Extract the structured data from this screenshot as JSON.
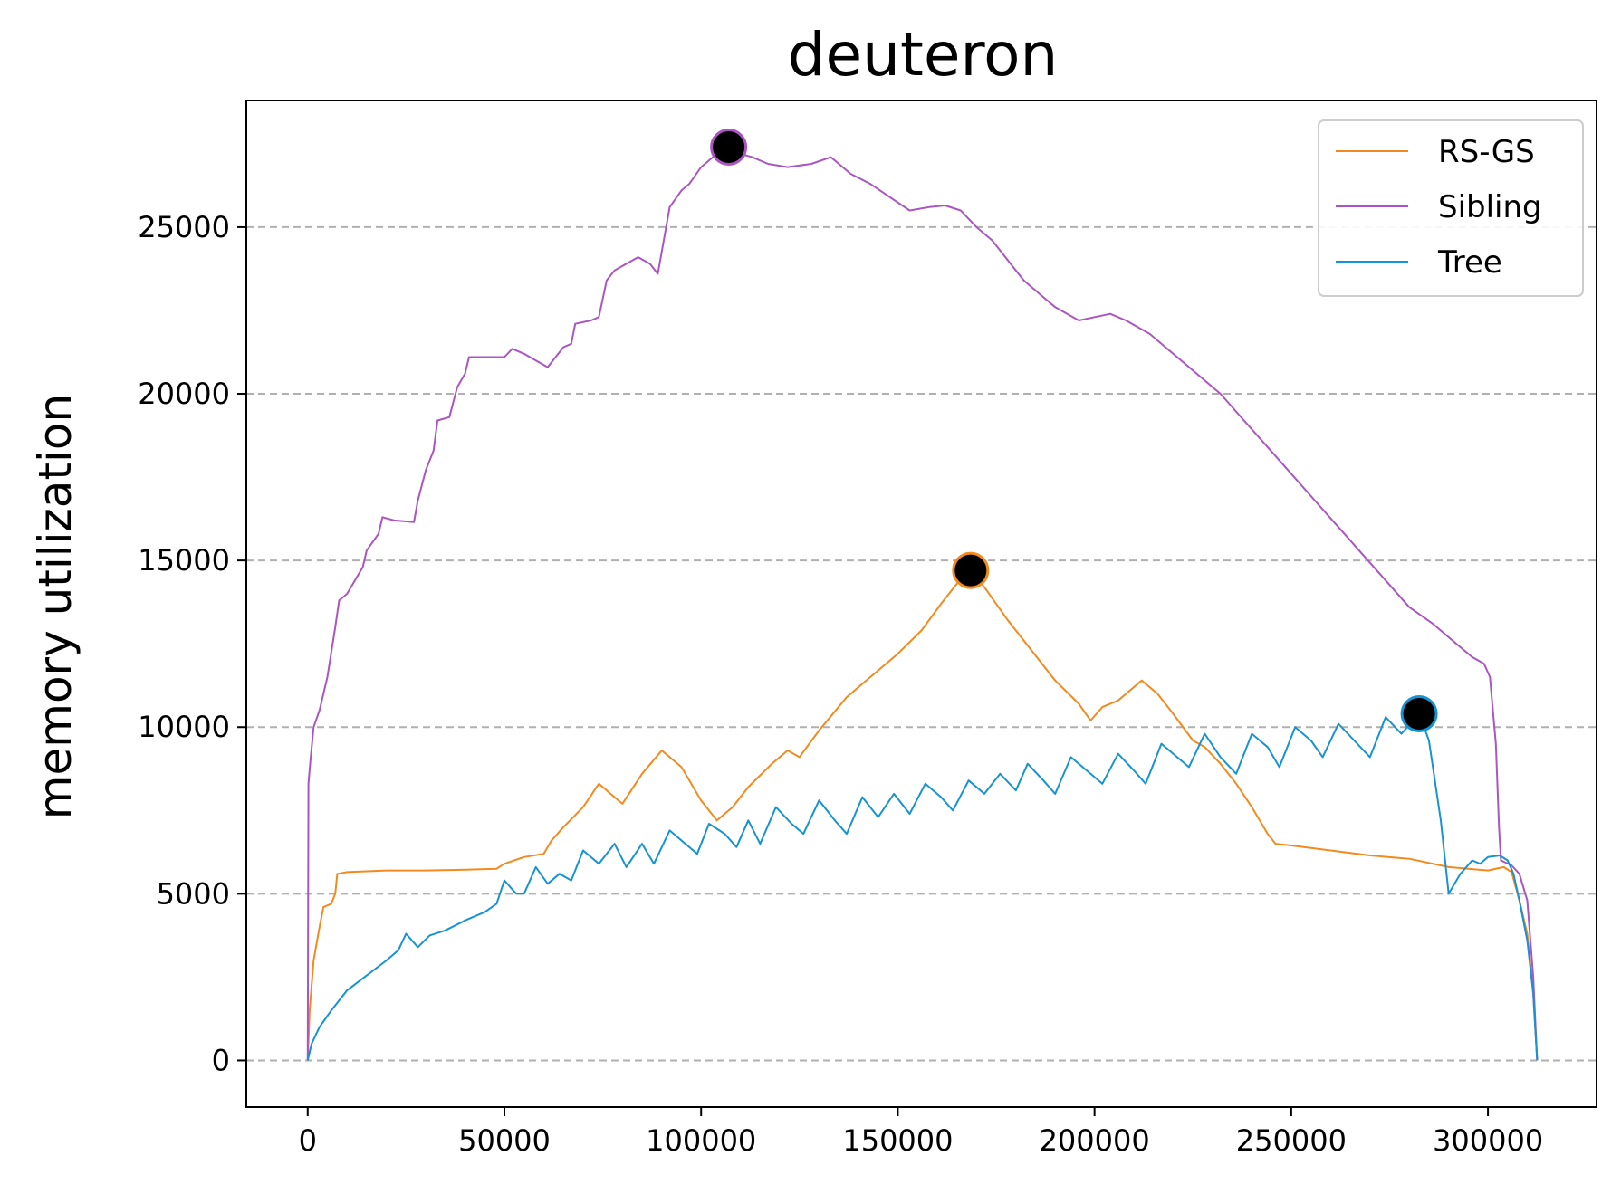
{
  "chart_data": {
    "type": "line",
    "title": "deuteron",
    "xlabel": "",
    "ylabel": "memory utilization",
    "xlim": [
      -15600,
      327600
    ],
    "ylim": [
      -1400,
      28800
    ],
    "xticks": [
      0,
      50000,
      100000,
      150000,
      200000,
      250000,
      300000
    ],
    "xtick_labels": [
      "0",
      "50000",
      "100000",
      "150000",
      "200000",
      "250000",
      "300000"
    ],
    "yticks": [
      0,
      5000,
      10000,
      15000,
      20000,
      25000
    ],
    "ytick_labels": [
      "0",
      "5000",
      "10000",
      "15000",
      "20000",
      "25000"
    ],
    "grid": "y-dashed",
    "legend_position": "top-right",
    "series": [
      {
        "name": "RS-GS",
        "color": "#f28a1e",
        "peak": [
          168500,
          14700
        ],
        "points": [
          [
            0,
            0
          ],
          [
            500,
            1500
          ],
          [
            1500,
            3000
          ],
          [
            3000,
            4000
          ],
          [
            4000,
            4600
          ],
          [
            6000,
            4700
          ],
          [
            7000,
            5000
          ],
          [
            7500,
            5600
          ],
          [
            10000,
            5650
          ],
          [
            20000,
            5700
          ],
          [
            30000,
            5700
          ],
          [
            40000,
            5720
          ],
          [
            48000,
            5750
          ],
          [
            50000,
            5900
          ],
          [
            55000,
            6100
          ],
          [
            60000,
            6200
          ],
          [
            62000,
            6600
          ],
          [
            65000,
            7000
          ],
          [
            70000,
            7600
          ],
          [
            74000,
            8300
          ],
          [
            78000,
            7900
          ],
          [
            80000,
            7700
          ],
          [
            85000,
            8600
          ],
          [
            90000,
            9300
          ],
          [
            95000,
            8800
          ],
          [
            100000,
            7800
          ],
          [
            104000,
            7200
          ],
          [
            108000,
            7600
          ],
          [
            112000,
            8200
          ],
          [
            118000,
            8900
          ],
          [
            122000,
            9300
          ],
          [
            125000,
            9100
          ],
          [
            130000,
            9900
          ],
          [
            137000,
            10900
          ],
          [
            143000,
            11500
          ],
          [
            150000,
            12200
          ],
          [
            156000,
            12900
          ],
          [
            161000,
            13700
          ],
          [
            165000,
            14300
          ],
          [
            168500,
            14700
          ],
          [
            172000,
            14200
          ],
          [
            178000,
            13200
          ],
          [
            184000,
            12300
          ],
          [
            190000,
            11400
          ],
          [
            196000,
            10700
          ],
          [
            199000,
            10200
          ],
          [
            202000,
            10600
          ],
          [
            206000,
            10800
          ],
          [
            212000,
            11400
          ],
          [
            216000,
            11000
          ],
          [
            220000,
            10400
          ],
          [
            225000,
            9600
          ],
          [
            228000,
            9400
          ],
          [
            232000,
            8900
          ],
          [
            236000,
            8300
          ],
          [
            240000,
            7600
          ],
          [
            244000,
            6800
          ],
          [
            246000,
            6500
          ],
          [
            250000,
            6450
          ],
          [
            260000,
            6300
          ],
          [
            270000,
            6150
          ],
          [
            280000,
            6050
          ],
          [
            290000,
            5800
          ],
          [
            300000,
            5700
          ],
          [
            304000,
            5800
          ],
          [
            306000,
            5650
          ],
          [
            308000,
            4800
          ],
          [
            310000,
            3800
          ],
          [
            311500,
            2000
          ],
          [
            312500,
            0
          ]
        ]
      },
      {
        "name": "Sibling",
        "color": "#ab55c2",
        "peak": [
          107000,
          27400
        ],
        "points": [
          [
            0,
            0
          ],
          [
            200,
            8300
          ],
          [
            700,
            9000
          ],
          [
            1500,
            10000
          ],
          [
            3000,
            10500
          ],
          [
            5000,
            11500
          ],
          [
            7000,
            13000
          ],
          [
            8000,
            13800
          ],
          [
            10000,
            14000
          ],
          [
            14000,
            14800
          ],
          [
            15000,
            15300
          ],
          [
            18000,
            15800
          ],
          [
            19000,
            16300
          ],
          [
            22000,
            16200
          ],
          [
            27000,
            16150
          ],
          [
            28000,
            16800
          ],
          [
            30000,
            17700
          ],
          [
            32000,
            18300
          ],
          [
            33000,
            19200
          ],
          [
            36000,
            19300
          ],
          [
            38000,
            20200
          ],
          [
            40000,
            20600
          ],
          [
            41000,
            21100
          ],
          [
            45000,
            21100
          ],
          [
            50000,
            21100
          ],
          [
            52000,
            21350
          ],
          [
            55000,
            21200
          ],
          [
            58000,
            21000
          ],
          [
            61000,
            20800
          ],
          [
            63000,
            21100
          ],
          [
            65000,
            21400
          ],
          [
            67000,
            21500
          ],
          [
            68000,
            22100
          ],
          [
            72000,
            22200
          ],
          [
            74000,
            22300
          ],
          [
            76000,
            23400
          ],
          [
            78000,
            23700
          ],
          [
            81000,
            23900
          ],
          [
            84000,
            24100
          ],
          [
            87000,
            23900
          ],
          [
            89000,
            23600
          ],
          [
            92000,
            25600
          ],
          [
            95000,
            26100
          ],
          [
            97000,
            26300
          ],
          [
            100000,
            26800
          ],
          [
            104000,
            27200
          ],
          [
            107000,
            27400
          ],
          [
            110000,
            27200
          ],
          [
            113000,
            27100
          ],
          [
            117000,
            26900
          ],
          [
            122000,
            26800
          ],
          [
            128000,
            26900
          ],
          [
            133000,
            27100
          ],
          [
            138000,
            26600
          ],
          [
            143000,
            26300
          ],
          [
            148000,
            25900
          ],
          [
            153000,
            25500
          ],
          [
            158000,
            25600
          ],
          [
            162000,
            25650
          ],
          [
            166000,
            25500
          ],
          [
            170000,
            25000
          ],
          [
            174000,
            24600
          ],
          [
            178000,
            24000
          ],
          [
            182000,
            23400
          ],
          [
            186000,
            23000
          ],
          [
            190000,
            22600
          ],
          [
            196000,
            22200
          ],
          [
            200000,
            22300
          ],
          [
            204000,
            22400
          ],
          [
            208000,
            22200
          ],
          [
            214000,
            21800
          ],
          [
            220000,
            21200
          ],
          [
            226000,
            20600
          ],
          [
            232000,
            20000
          ],
          [
            238000,
            19200
          ],
          [
            244000,
            18400
          ],
          [
            250000,
            17600
          ],
          [
            256000,
            16800
          ],
          [
            262000,
            16000
          ],
          [
            268000,
            15200
          ],
          [
            274000,
            14400
          ],
          [
            280000,
            13600
          ],
          [
            286000,
            13100
          ],
          [
            292000,
            12500
          ],
          [
            296000,
            12100
          ],
          [
            299000,
            11900
          ],
          [
            300500,
            11500
          ],
          [
            302000,
            9500
          ],
          [
            302800,
            7000
          ],
          [
            303300,
            6000
          ],
          [
            306000,
            5850
          ],
          [
            308000,
            5600
          ],
          [
            310000,
            4800
          ],
          [
            311500,
            2500
          ],
          [
            312500,
            0
          ]
        ]
      },
      {
        "name": "Tree",
        "color": "#1793d1",
        "peak": [
          282500,
          10400
        ],
        "points": [
          [
            0,
            0
          ],
          [
            1000,
            500
          ],
          [
            3000,
            1000
          ],
          [
            6000,
            1500
          ],
          [
            10000,
            2100
          ],
          [
            15000,
            2550
          ],
          [
            20000,
            3000
          ],
          [
            23000,
            3300
          ],
          [
            25000,
            3800
          ],
          [
            28000,
            3400
          ],
          [
            31000,
            3750
          ],
          [
            35000,
            3900
          ],
          [
            40000,
            4200
          ],
          [
            45000,
            4450
          ],
          [
            48000,
            4700
          ],
          [
            50000,
            5400
          ],
          [
            53000,
            5000
          ],
          [
            55000,
            5000
          ],
          [
            58000,
            5800
          ],
          [
            61000,
            5300
          ],
          [
            64000,
            5600
          ],
          [
            67000,
            5400
          ],
          [
            70000,
            6300
          ],
          [
            74000,
            5900
          ],
          [
            78000,
            6500
          ],
          [
            81000,
            5800
          ],
          [
            85000,
            6500
          ],
          [
            88000,
            5900
          ],
          [
            92000,
            6900
          ],
          [
            96000,
            6500
          ],
          [
            99000,
            6200
          ],
          [
            102000,
            7100
          ],
          [
            106000,
            6800
          ],
          [
            109000,
            6400
          ],
          [
            112000,
            7200
          ],
          [
            115000,
            6500
          ],
          [
            119000,
            7600
          ],
          [
            123000,
            7100
          ],
          [
            126000,
            6800
          ],
          [
            130000,
            7800
          ],
          [
            134000,
            7200
          ],
          [
            137000,
            6800
          ],
          [
            141000,
            7900
          ],
          [
            145000,
            7300
          ],
          [
            149000,
            8000
          ],
          [
            153000,
            7400
          ],
          [
            157000,
            8300
          ],
          [
            161000,
            7900
          ],
          [
            164000,
            7500
          ],
          [
            168000,
            8400
          ],
          [
            172000,
            8000
          ],
          [
            176000,
            8600
          ],
          [
            180000,
            8100
          ],
          [
            183000,
            8900
          ],
          [
            187000,
            8400
          ],
          [
            190000,
            8000
          ],
          [
            194000,
            9100
          ],
          [
            198000,
            8700
          ],
          [
            202000,
            8300
          ],
          [
            206000,
            9200
          ],
          [
            210000,
            8700
          ],
          [
            213000,
            8300
          ],
          [
            217000,
            9500
          ],
          [
            221000,
            9100
          ],
          [
            224000,
            8800
          ],
          [
            228000,
            9800
          ],
          [
            232000,
            9100
          ],
          [
            236000,
            8600
          ],
          [
            240000,
            9800
          ],
          [
            244000,
            9400
          ],
          [
            247000,
            8800
          ],
          [
            251000,
            10000
          ],
          [
            255000,
            9600
          ],
          [
            258000,
            9100
          ],
          [
            262000,
            10100
          ],
          [
            266000,
            9600
          ],
          [
            270000,
            9100
          ],
          [
            274000,
            10300
          ],
          [
            278000,
            9800
          ],
          [
            282500,
            10400
          ],
          [
            285000,
            9600
          ],
          [
            288000,
            7200
          ],
          [
            290000,
            5000
          ],
          [
            293000,
            5600
          ],
          [
            296000,
            6000
          ],
          [
            298000,
            5900
          ],
          [
            300000,
            6100
          ],
          [
            303000,
            6150
          ],
          [
            305000,
            6000
          ],
          [
            306500,
            5600
          ],
          [
            308000,
            4800
          ],
          [
            310000,
            3600
          ],
          [
            311500,
            2000
          ],
          [
            312500,
            0
          ]
        ]
      }
    ]
  }
}
